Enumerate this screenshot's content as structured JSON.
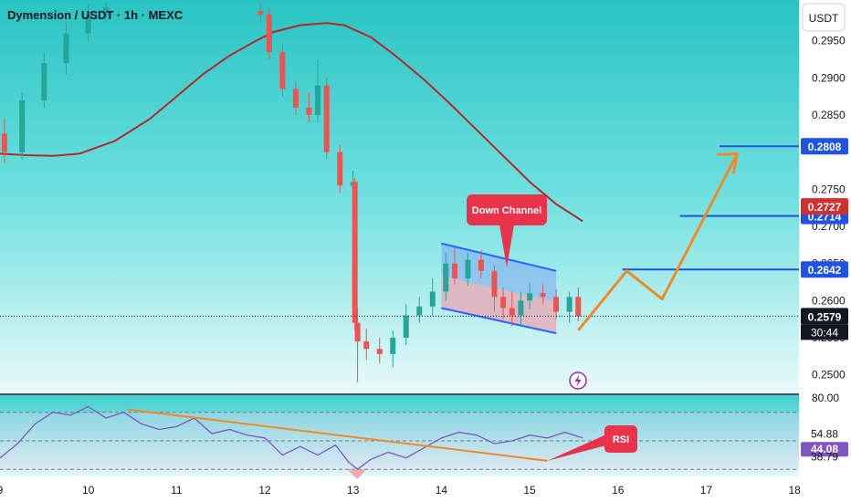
{
  "header": {
    "symbol_title": "Dymension / USDT · 1h · MEXC",
    "currency_button": "USDT"
  },
  "chart_data": [
    {
      "type": "candlestick",
      "title": "Dymension / USDT · 1h · MEXC",
      "ylim": [
        0.2475,
        0.3005
      ],
      "y_ticks": [
        "0.2950",
        "0.2900",
        "0.2850",
        "0.2750",
        "0.2700",
        "0.2650",
        "0.2600",
        "0.2550",
        "0.2500"
      ],
      "x_ticks": [
        "9",
        "10",
        "11",
        "12",
        "13",
        "14",
        "15",
        "16",
        "17",
        "18"
      ],
      "x_range": [
        9,
        18.05
      ],
      "colors": {
        "up": "#26a69a",
        "down": "#ef5350",
        "background": "#4fd3d3",
        "ma": "#b22a2a",
        "projection": "#f08a24",
        "level_line": "#1e53e5",
        "channel": "#2962ff"
      },
      "price_lines": [
        {
          "label": "0.2808",
          "value": 0.2808,
          "x_start": 17.15,
          "color": "#1e53e5"
        },
        {
          "label": "0.2714",
          "value": 0.2714,
          "x_start": 16.7,
          "color": "#1e53e5"
        },
        {
          "label": "0.2642",
          "value": 0.2642,
          "x_start": 16.05,
          "color": "#1e53e5"
        }
      ],
      "price_labels": [
        {
          "text": "0.2727",
          "value": 0.2727,
          "color": "#d32f2f"
        },
        {
          "text": "0.2579",
          "value": 0.2579,
          "color": "#131722"
        }
      ],
      "countdown": "30:44",
      "last_price": 0.2579,
      "moving_average": {
        "x": [
          9.0,
          9.3,
          9.6,
          9.9,
          10.3,
          10.7,
          11.0,
          11.3,
          11.6,
          11.9,
          12.1,
          12.4,
          12.7,
          12.9,
          13.2,
          13.5,
          13.8,
          14.1,
          14.4,
          14.7,
          15.0,
          15.3,
          15.6
        ],
        "y": [
          0.2798,
          0.2796,
          0.2795,
          0.2798,
          0.2815,
          0.2845,
          0.2875,
          0.2905,
          0.293,
          0.295,
          0.2962,
          0.2971,
          0.2974,
          0.2971,
          0.2955,
          0.2928,
          0.2898,
          0.2865,
          0.283,
          0.2795,
          0.276,
          0.273,
          0.2707
        ]
      },
      "down_channel": {
        "label": "Down Channel",
        "upper": {
          "x": [
            14.0,
            15.3
          ],
          "y": [
            0.2677,
            0.264
          ]
        },
        "lower": {
          "x": [
            14.0,
            15.3
          ],
          "y": [
            0.259,
            0.2556
          ]
        }
      },
      "projection": {
        "x": [
          15.55,
          16.1,
          16.5,
          17.35
        ],
        "y": [
          0.256,
          0.264,
          0.2602,
          0.2798
        ]
      },
      "candles": {
        "x": [
          9.05,
          9.25,
          9.5,
          9.75,
          10.0,
          10.2,
          11.95,
          12.05,
          12.2,
          12.35,
          12.5,
          12.6,
          12.7,
          12.85,
          13.0,
          13.02,
          13.05,
          13.15,
          13.3,
          13.45,
          13.6,
          13.75,
          13.9,
          14.05,
          14.15,
          14.3,
          14.45,
          14.6,
          14.7,
          14.8,
          14.9,
          15.0,
          15.15,
          15.3,
          15.45,
          15.55
        ],
        "open": [
          0.2825,
          0.28,
          0.287,
          0.292,
          0.296,
          0.2985,
          0.299,
          0.2985,
          0.2935,
          0.2885,
          0.286,
          0.285,
          0.289,
          0.28,
          0.2755,
          0.276,
          0.257,
          0.2545,
          0.2535,
          0.2528,
          0.255,
          0.258,
          0.2592,
          0.2612,
          0.265,
          0.263,
          0.2655,
          0.264,
          0.2605,
          0.259,
          0.258,
          0.26,
          0.261,
          0.2605,
          0.2585,
          0.2605
        ],
        "close": [
          0.28,
          0.287,
          0.292,
          0.296,
          0.2985,
          0.2995,
          0.2985,
          0.2935,
          0.2885,
          0.286,
          0.285,
          0.289,
          0.28,
          0.2755,
          0.276,
          0.257,
          0.2545,
          0.2535,
          0.2528,
          0.255,
          0.258,
          0.2592,
          0.2612,
          0.265,
          0.263,
          0.2655,
          0.264,
          0.2605,
          0.259,
          0.258,
          0.26,
          0.261,
          0.2605,
          0.2585,
          0.2605,
          0.2579
        ],
        "high": [
          0.2845,
          0.288,
          0.2935,
          0.2975,
          0.3,
          0.3002,
          0.3002,
          0.2995,
          0.2945,
          0.2895,
          0.288,
          0.2925,
          0.29,
          0.281,
          0.2775,
          0.2765,
          0.259,
          0.2562,
          0.255,
          0.256,
          0.2595,
          0.2605,
          0.263,
          0.2665,
          0.2672,
          0.2665,
          0.2668,
          0.2648,
          0.2618,
          0.2612,
          0.2612,
          0.2624,
          0.2622,
          0.2615,
          0.2612,
          0.2618
        ],
        "low": [
          0.2785,
          0.279,
          0.286,
          0.2905,
          0.295,
          0.2975,
          0.2975,
          0.2925,
          0.2875,
          0.285,
          0.284,
          0.284,
          0.279,
          0.2745,
          0.2745,
          0.256,
          0.249,
          0.252,
          0.2515,
          0.251,
          0.254,
          0.257,
          0.258,
          0.26,
          0.2622,
          0.262,
          0.263,
          0.2585,
          0.2575,
          0.2565,
          0.2565,
          0.2588,
          0.2595,
          0.2575,
          0.257,
          0.2572
        ]
      },
      "icon": "lightning-icon"
    },
    {
      "type": "line",
      "title": "RSI",
      "ylim": [
        25,
        82
      ],
      "y_ticks": [
        "80.00"
      ],
      "value_labels": [
        {
          "text": "54.88",
          "value": 54.88,
          "color": "#131722"
        },
        {
          "text": "44.08",
          "value": 44.08,
          "color": "#7e57c2"
        },
        {
          "text": "38.79",
          "value": 38.79,
          "color": "#131722"
        }
      ],
      "bands": {
        "upper": 70,
        "middle": 50,
        "lower": 30
      },
      "colors": {
        "rsi": "#7e57c2",
        "band": "#dcd3f0",
        "trendline": "#f08a24",
        "oversold": "#ef9a9a"
      },
      "series": [
        {
          "x": [
            9.0,
            9.2,
            9.4,
            9.6,
            9.8,
            10.0,
            10.2,
            10.4,
            10.6,
            10.8,
            11.0,
            11.2,
            11.4,
            11.6,
            11.8,
            12.0,
            12.2,
            12.4,
            12.6,
            12.8,
            12.95,
            13.05,
            13.2,
            13.4,
            13.6,
            13.8,
            14.0,
            14.2,
            14.4,
            14.6,
            14.8,
            15.0,
            15.2,
            15.4,
            15.6
          ],
          "y": [
            38,
            48,
            62,
            70,
            68,
            74,
            66,
            70,
            62,
            58,
            60,
            66,
            55,
            58,
            54,
            52,
            40,
            46,
            40,
            47,
            35,
            30,
            37,
            42,
            38,
            45,
            52,
            56,
            54,
            48,
            50,
            54,
            52,
            56,
            52
          ]
        }
      ],
      "rsi_trendline": {
        "x": [
          10.45,
          15.2
        ],
        "y": [
          72,
          36
        ]
      },
      "callout_label": "RSI"
    }
  ]
}
